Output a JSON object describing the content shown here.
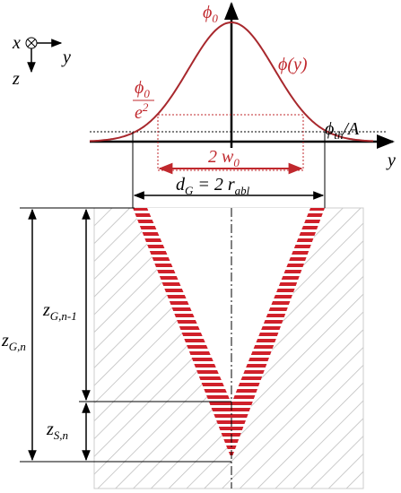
{
  "axes": {
    "x": "x",
    "y": "y",
    "z": "z",
    "profile_y": "y"
  },
  "labels": {
    "phi0": {
      "symbol": "ϕ",
      "sub": "0"
    },
    "phi_y": "ϕ(y)",
    "phi0_e2": {
      "num_symbol": "ϕ",
      "num_sub": "0",
      "den_base": "e",
      "den_sup": "2"
    },
    "phi_th": {
      "symbol": "ϕ",
      "sub": "th",
      "suffix": "/A"
    },
    "w0": {
      "prefix": "2 w",
      "sub": "0"
    },
    "dG": {
      "symbol": "d",
      "sub": "G",
      "mid": " = 2 r",
      "sub2": "abl"
    },
    "zGn1": {
      "symbol": "z",
      "sub": "G,n-1"
    },
    "zGn": {
      "symbol": "z",
      "sub": "G,n"
    },
    "zSn": {
      "symbol": "z",
      "sub": "S,n"
    }
  }
}
